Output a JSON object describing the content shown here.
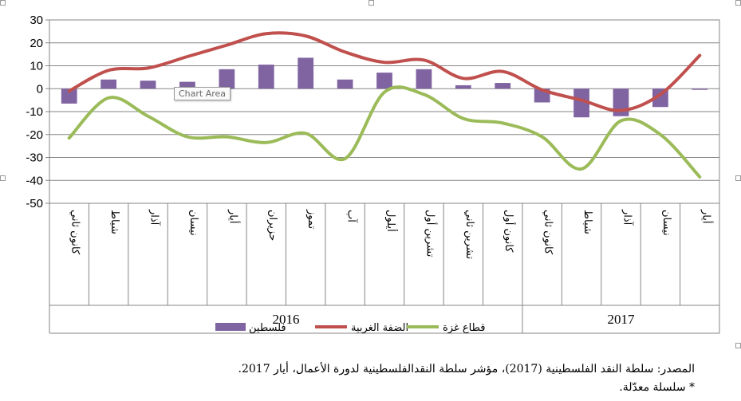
{
  "chart_data": {
    "type": "bar",
    "categories": [
      "كانون ثاني",
      "شباط",
      "آذار",
      "نيسان",
      "أيار",
      "حزيران",
      "تموز",
      "آب",
      "أيلول",
      "تشرين أول",
      "تشرين ثاني",
      "كانون أول",
      "كانون ثاني",
      "شباط",
      "آذار",
      "نيسان",
      "أيار"
    ],
    "groups": [
      {
        "label": "2016",
        "count": 12
      },
      {
        "label": "2017",
        "count": 5
      }
    ],
    "series": [
      {
        "name": "فلسطين",
        "type": "bar",
        "color": "#8064a2",
        "values": [
          -6.5,
          4.0,
          3.5,
          3.0,
          8.5,
          10.5,
          13.5,
          4.0,
          7.0,
          8.5,
          1.5,
          2.5,
          -6.0,
          -12.5,
          -12.0,
          -8.0,
          -0.5
        ]
      },
      {
        "name": "الضفة الغربية",
        "type": "line",
        "color": "#c0504d",
        "values": [
          -1.0,
          8.0,
          9.0,
          14.0,
          19.0,
          24.0,
          23.0,
          16.0,
          11.5,
          12.5,
          4.5,
          7.5,
          -0.5,
          -5.0,
          -9.5,
          -2.5,
          14.5
        ]
      },
      {
        "name": "قطاع غزة",
        "type": "line",
        "color": "#9bbb59",
        "values": [
          -21.5,
          -4.0,
          -12.0,
          -21.0,
          -21.0,
          -23.5,
          -19.5,
          -30.5,
          -1.5,
          -2.5,
          -13.0,
          -15.0,
          -21.0,
          -35.0,
          -14.0,
          -20.0,
          -38.5
        ]
      }
    ],
    "ylim": [
      -50,
      30
    ],
    "yticks": [
      -50,
      -40,
      -30,
      -20,
      -10,
      0,
      10,
      20,
      30
    ],
    "grid": true,
    "legend_position": "bottom"
  },
  "tooltip": "Chart Area",
  "source": "المصدر: سلطة النقد الفلسطينية (2017)، مؤشر سلطة النقدالفلسطينية لدورة الأعمال، أيار 2017.",
  "note": "* سلسلة معدّلة."
}
